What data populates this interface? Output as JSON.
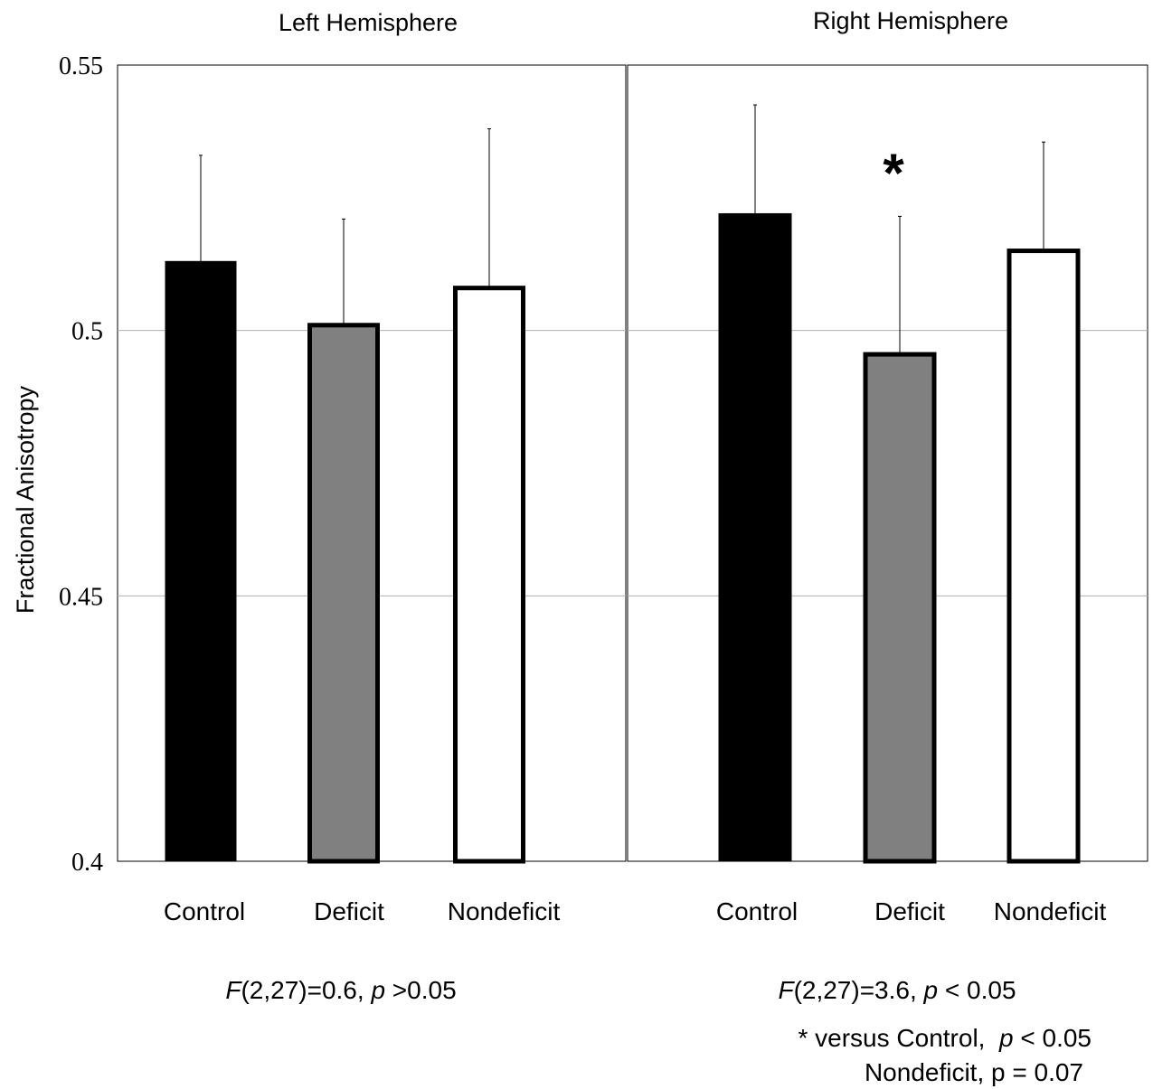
{
  "chart_data": {
    "type": "bar",
    "ylabel": "Fractional Anisotropy",
    "ylim": [
      0.4,
      0.55
    ],
    "yticks": [
      {
        "value": 0.55,
        "label": "0.55"
      },
      {
        "value": 0.5,
        "label": "0.5"
      },
      {
        "value": 0.45,
        "label": "0.45"
      },
      {
        "value": 0.4,
        "label": "0.4"
      }
    ],
    "grid": true,
    "panels": [
      {
        "title": "Left Hemisphere",
        "categories": [
          "Control",
          "Deficit",
          "Nondeficit"
        ],
        "values": [
          0.513,
          0.501,
          0.508
        ],
        "error_upper": [
          0.533,
          0.521,
          0.538
        ],
        "stats": {
          "italic": "F",
          "part1": "(2,27)=0.6, ",
          "italic2": "p",
          "part2": " >0.05"
        }
      },
      {
        "title": "Right Hemisphere",
        "categories": [
          "Control",
          "Deficit",
          "Nondeficit"
        ],
        "values": [
          0.522,
          0.4955,
          0.515
        ],
        "error_upper": [
          0.5425,
          0.5215,
          0.5355
        ],
        "significance_marker": {
          "category": "Deficit",
          "symbol": "*"
        },
        "stats": {
          "italic": "F",
          "part1": "(2,27)=3.6, ",
          "italic2": "p",
          "part2": " < 0.05"
        },
        "notes": {
          "line1_prefix": "* versus Control,  ",
          "line1_italic": "p",
          "line1_suffix": " < 0.05",
          "line2": "Nondeficit, p = 0.07"
        }
      }
    ],
    "bar_fills": [
      "#000000",
      "#808080",
      "#ffffff"
    ]
  }
}
